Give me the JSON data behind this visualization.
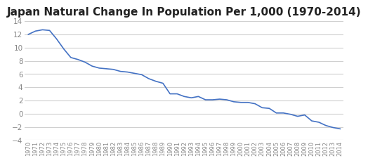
{
  "title": "Japan Natural Change In Population Per 1,000 (1970-2014)",
  "years": [
    1970,
    1971,
    1972,
    1973,
    1974,
    1975,
    1976,
    1977,
    1978,
    1979,
    1980,
    1981,
    1982,
    1983,
    1984,
    1985,
    1986,
    1987,
    1988,
    1989,
    1990,
    1991,
    1992,
    1993,
    1994,
    1995,
    1996,
    1997,
    1998,
    1999,
    2000,
    2001,
    2002,
    2003,
    2004,
    2005,
    2006,
    2007,
    2008,
    2009,
    2010,
    2011,
    2012,
    2013,
    2014
  ],
  "values": [
    12.0,
    12.5,
    12.7,
    12.6,
    11.3,
    9.8,
    8.5,
    8.2,
    7.8,
    7.2,
    6.9,
    6.8,
    6.7,
    6.4,
    6.3,
    6.1,
    5.9,
    5.3,
    4.9,
    4.6,
    3.0,
    3.0,
    2.6,
    2.4,
    2.6,
    2.1,
    2.1,
    2.2,
    2.1,
    1.8,
    1.7,
    1.7,
    1.5,
    0.9,
    0.8,
    0.1,
    0.1,
    -0.1,
    -0.4,
    -0.2,
    -1.1,
    -1.3,
    -1.8,
    -2.1,
    -2.3
  ],
  "line_color": "#4472C4",
  "bg_color": "#FFFFFF",
  "ylim": [
    -4,
    14
  ],
  "yticks": [
    -4,
    -2,
    0,
    2,
    4,
    6,
    8,
    10,
    12,
    14
  ],
  "title_fontsize": 11,
  "tick_fontsize": 6.0,
  "ytick_fontsize": 7.5,
  "grid_color": "#D0D0D0"
}
